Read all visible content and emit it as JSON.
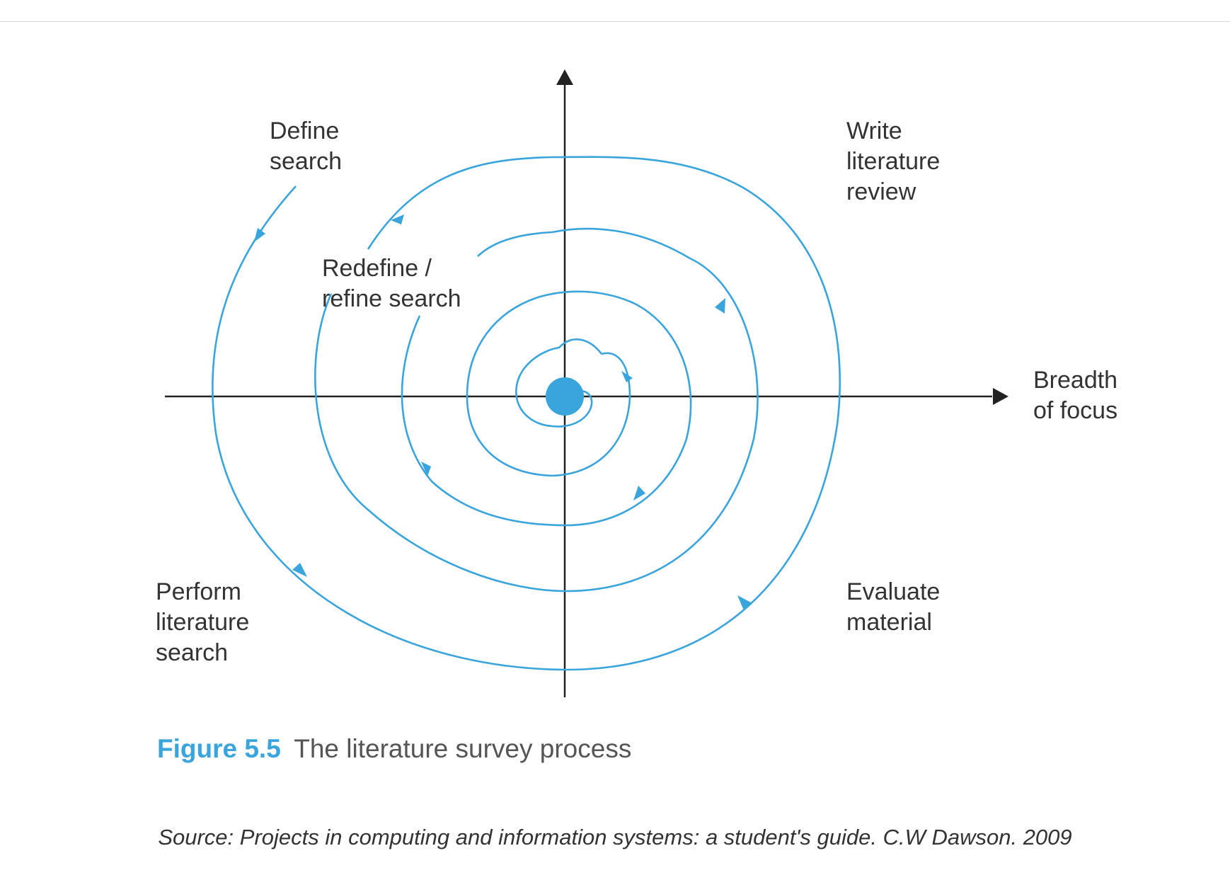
{
  "figure": {
    "labels": {
      "define_search": [
        "Define",
        "search"
      ],
      "write_review": [
        "Write",
        "literature",
        "review"
      ],
      "redefine_search": [
        "Redefine /",
        "refine search"
      ],
      "breadth_of_focus": [
        "Breadth",
        "of focus"
      ],
      "perform_search": [
        "Perform",
        "literature",
        "search"
      ],
      "evaluate_material": [
        "Evaluate",
        "material"
      ]
    },
    "caption": {
      "number": "Figure 5.5",
      "title": "The literature survey process"
    }
  },
  "source": "Source: Projects in computing and information systems: a student's guide. C.W Dawson. 2009",
  "colors": {
    "spiral": "#3aa4dc",
    "axes": "#222222",
    "text": "#333333"
  }
}
